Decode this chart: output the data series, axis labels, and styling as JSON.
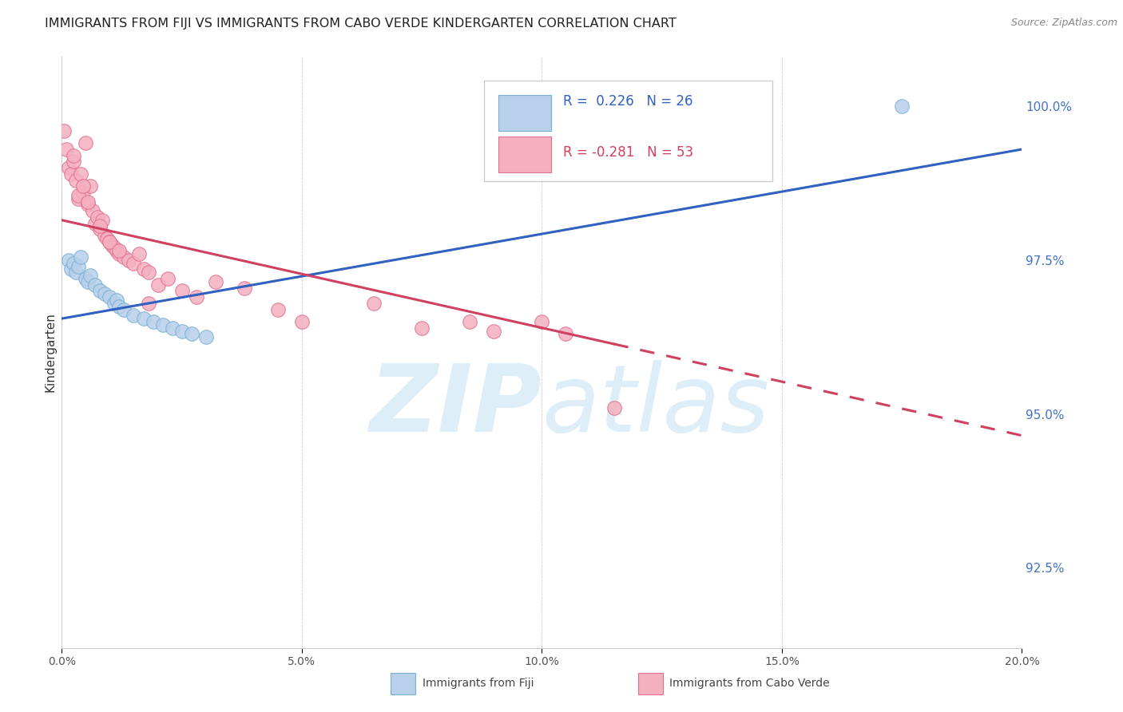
{
  "title": "IMMIGRANTS FROM FIJI VS IMMIGRANTS FROM CABO VERDE KINDERGARTEN CORRELATION CHART",
  "source": "Source: ZipAtlas.com",
  "xlabel_ticks": [
    "0.0%",
    "5.0%",
    "10.0%",
    "15.0%",
    "20.0%"
  ],
  "xlabel_vals": [
    0.0,
    5.0,
    10.0,
    15.0,
    20.0
  ],
  "ylabel_ticks": [
    "92.5%",
    "95.0%",
    "97.5%",
    "100.0%"
  ],
  "ylabel_vals": [
    92.5,
    95.0,
    97.5,
    100.0
  ],
  "fiji_R": 0.226,
  "fiji_N": 26,
  "cabo_R": -0.281,
  "cabo_N": 53,
  "fiji_color": "#b8d0ea",
  "cabo_color": "#f5b0c0",
  "fiji_edge": "#7aafd4",
  "cabo_edge": "#e07090",
  "trend_fiji_color": "#3060c0",
  "trend_cabo_color": "#d04060",
  "background_color": "#ffffff",
  "watermark_color": "#ddeef8",
  "xmin": 0.0,
  "xmax": 20.0,
  "ymin": 91.2,
  "ymax": 100.8,
  "fiji_trend_x0": 0.0,
  "fiji_trend_y0": 96.55,
  "fiji_trend_x1": 20.0,
  "fiji_trend_y1": 99.3,
  "cabo_trend_x0": 0.0,
  "cabo_trend_y0": 98.15,
  "cabo_trend_x1": 20.0,
  "cabo_trend_y1": 94.65,
  "cabo_solid_end": 11.5,
  "fiji_x": [
    0.15,
    0.2,
    0.25,
    0.3,
    0.35,
    0.4,
    0.5,
    0.55,
    0.6,
    0.7,
    0.8,
    0.9,
    1.0,
    1.1,
    1.15,
    1.2,
    1.3,
    1.5,
    1.7,
    1.9,
    2.1,
    2.3,
    2.5,
    2.7,
    3.0,
    17.5
  ],
  "fiji_y": [
    97.5,
    97.35,
    97.45,
    97.3,
    97.4,
    97.55,
    97.2,
    97.15,
    97.25,
    97.1,
    97.0,
    96.95,
    96.9,
    96.8,
    96.85,
    96.75,
    96.7,
    96.6,
    96.55,
    96.5,
    96.45,
    96.4,
    96.35,
    96.3,
    96.25,
    100.0
  ],
  "cabo_x": [
    0.05,
    0.1,
    0.15,
    0.2,
    0.25,
    0.3,
    0.35,
    0.4,
    0.45,
    0.5,
    0.55,
    0.6,
    0.65,
    0.7,
    0.75,
    0.8,
    0.85,
    0.9,
    0.95,
    1.0,
    1.05,
    1.1,
    1.15,
    1.2,
    1.3,
    1.4,
    1.5,
    1.6,
    1.7,
    1.8,
    2.0,
    2.2,
    2.5,
    2.8,
    3.2,
    3.8,
    4.5,
    5.0,
    6.5,
    7.5,
    8.5,
    9.0,
    10.0,
    10.5,
    11.5,
    0.25,
    0.35,
    0.45,
    0.55,
    0.8,
    1.0,
    1.2,
    1.8
  ],
  "cabo_y": [
    99.6,
    99.3,
    99.0,
    98.9,
    99.1,
    98.8,
    98.5,
    98.9,
    98.6,
    99.4,
    98.4,
    98.7,
    98.3,
    98.1,
    98.2,
    98.0,
    98.15,
    97.9,
    97.85,
    97.8,
    97.75,
    97.7,
    97.65,
    97.6,
    97.55,
    97.5,
    97.45,
    97.6,
    97.35,
    97.3,
    97.1,
    97.2,
    97.0,
    96.9,
    97.15,
    97.05,
    96.7,
    96.5,
    96.8,
    96.4,
    96.5,
    96.35,
    96.5,
    96.3,
    95.1,
    99.2,
    98.55,
    98.7,
    98.45,
    98.05,
    97.8,
    97.65,
    96.8
  ]
}
